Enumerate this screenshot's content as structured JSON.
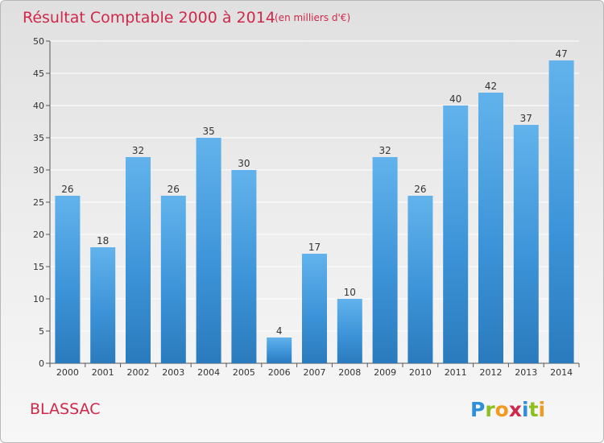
{
  "chart_data": {
    "type": "bar",
    "title": "Résultat Comptable 2000 à 2014",
    "subtitle": "(en milliers d'€)",
    "categories": [
      "2000",
      "2001",
      "2002",
      "2003",
      "2004",
      "2005",
      "2006",
      "2007",
      "2008",
      "2009",
      "2010",
      "2011",
      "2012",
      "2013",
      "2014"
    ],
    "values": [
      26,
      18,
      32,
      26,
      35,
      30,
      4,
      17,
      10,
      32,
      26,
      40,
      42,
      37,
      47
    ],
    "ylim": [
      0,
      50
    ],
    "yticks": [
      0,
      5,
      10,
      15,
      20,
      25,
      30,
      35,
      40,
      45,
      50
    ],
    "grid": true,
    "bar_color": "#3d94d8",
    "bar_color_light": "#62b3ec",
    "bar_color_dark": "#2a7bbd"
  },
  "place_name": "BLASSAC",
  "logo": {
    "text": "Proxiti",
    "letters": [
      {
        "char": "P",
        "color": "#2f8fd8"
      },
      {
        "char": "r",
        "color": "#8fbf1f"
      },
      {
        "char": "o",
        "color": "#f39a1e"
      },
      {
        "char": "x",
        "color": "#d0284b"
      },
      {
        "char": "i",
        "color": "#2f8fd8"
      },
      {
        "char": "t",
        "color": "#8fbf1f"
      },
      {
        "char": "i",
        "color": "#f39a1e"
      }
    ]
  },
  "colors": {
    "accent": "#d0284b",
    "grid": "#ffffff",
    "axis_text": "#333333"
  }
}
